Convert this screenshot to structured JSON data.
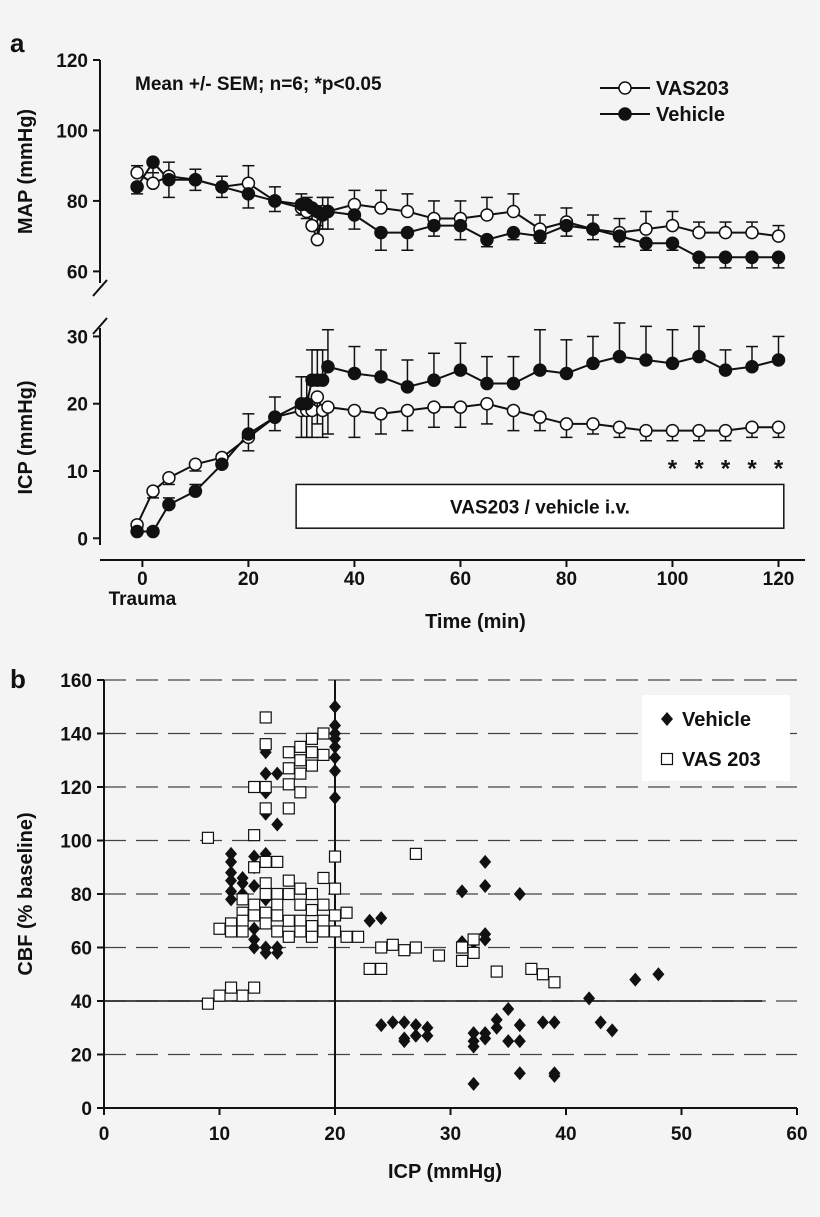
{
  "panels": [
    "a",
    "b"
  ],
  "chart_data": [
    {
      "type": "line",
      "ylabel": "MAP (mmHg)",
      "annotation": "Mean +/- SEM; n=6; *p<0.05",
      "legend": "upper right",
      "x": [
        -1,
        2,
        5,
        10,
        15,
        20,
        25,
        30,
        31,
        32,
        33,
        34,
        35,
        40,
        45,
        50,
        55,
        60,
        65,
        70,
        75,
        80,
        85,
        90,
        95,
        100,
        105,
        110,
        115,
        120
      ],
      "xlim": [
        -8,
        125
      ],
      "ylim": [
        55,
        120
      ],
      "yticks": [
        60,
        80,
        100,
        120
      ],
      "series": [
        {
          "name": "VAS203",
          "color": "#111111",
          "marker": "open",
          "error_side": "up",
          "values": [
            88,
            85,
            87,
            86,
            84,
            85,
            80,
            78,
            77,
            73,
            69,
            77,
            77,
            79,
            78,
            77,
            75,
            75,
            76,
            77,
            72,
            74,
            72,
            71,
            72,
            73,
            71,
            71,
            71,
            70
          ],
          "errors": [
            2,
            3,
            4,
            3,
            3,
            5,
            4,
            4,
            4,
            4,
            3,
            4,
            4,
            4,
            5,
            5,
            5,
            5,
            5,
            5,
            4,
            4,
            4,
            4,
            5,
            4,
            3,
            3,
            3,
            3
          ]
        },
        {
          "name": "Vehicle",
          "color": "#111111",
          "marker": "filled",
          "error_side": "down",
          "values": [
            84,
            91,
            86,
            86,
            84,
            82,
            80,
            79,
            79,
            78,
            77,
            76,
            77,
            76,
            71,
            71,
            73,
            73,
            69,
            71,
            70,
            73,
            72,
            70,
            68,
            68,
            64,
            64,
            64,
            64
          ],
          "errors": [
            2,
            3,
            5,
            3,
            3,
            4,
            3,
            3,
            4,
            4,
            4,
            4,
            5,
            4,
            5,
            5,
            3,
            4,
            2,
            2,
            2,
            3,
            3,
            3,
            2,
            2,
            3,
            3,
            3,
            3
          ]
        }
      ]
    },
    {
      "type": "line",
      "ylabel": "ICP (mmHg)",
      "xlabel": "Time (min)",
      "xmark_label": "Trauma",
      "xmark": 0,
      "x": [
        -1,
        2,
        5,
        10,
        15,
        20,
        25,
        30,
        31,
        32,
        33,
        34,
        35,
        40,
        45,
        50,
        55,
        60,
        65,
        70,
        75,
        80,
        85,
        90,
        95,
        100,
        105,
        110,
        115,
        120
      ],
      "xlim": [
        -8,
        125
      ],
      "xticks": [
        0,
        20,
        40,
        60,
        80,
        100,
        120
      ],
      "ylim": [
        -1,
        32
      ],
      "yticks": [
        0,
        10,
        20,
        30
      ],
      "treatment_box": {
        "label": "VAS203 / vehicle i.v.",
        "x": [
          29,
          121
        ],
        "y": [
          1.5,
          8
        ]
      },
      "significance": {
        "text": "*",
        "x": [
          100,
          105,
          110,
          115,
          120
        ],
        "y": 11
      },
      "series": [
        {
          "color": "#111111",
          "marker": "open",
          "error_side": "down",
          "values": [
            2,
            7,
            9,
            11,
            12,
            15,
            18,
            19,
            19,
            19,
            21,
            19,
            19.5,
            19,
            18.5,
            19,
            19.5,
            19.5,
            20,
            19,
            18,
            17,
            17,
            16.5,
            16,
            16,
            16,
            16,
            16.5,
            16.5
          ],
          "errors": [
            0.5,
            1,
            1,
            1,
            1,
            2,
            2,
            4,
            4,
            4,
            4,
            4,
            4,
            4,
            3,
            3,
            3,
            3,
            3,
            3,
            2,
            2,
            1.5,
            1.5,
            1.5,
            1.5,
            1.5,
            1.5,
            1.5,
            1.5
          ]
        },
        {
          "color": "#111111",
          "marker": "filled",
          "error_side": "up",
          "values": [
            1,
            1,
            5,
            7,
            11,
            15.5,
            18,
            20,
            20,
            23.5,
            23.5,
            23.5,
            25.5,
            24.5,
            24,
            22.5,
            23.5,
            25,
            23,
            23,
            25,
            24.5,
            26,
            27,
            26.5,
            26,
            27,
            25,
            25.5,
            26.5
          ],
          "errors": [
            0.5,
            0.5,
            1,
            1,
            1.5,
            3,
            3,
            4,
            4,
            4.5,
            4.5,
            4.5,
            5.5,
            4,
            4,
            4,
            4,
            4,
            4,
            4,
            6,
            5,
            4,
            5,
            5,
            5,
            4.5,
            3,
            3,
            3.5
          ]
        }
      ]
    },
    {
      "type": "scatter",
      "xlabel": "ICP (mmHg)",
      "ylabel": "CBF (% baseline)",
      "legend": "upper right",
      "grid": "dashed",
      "xlim": [
        0,
        60
      ],
      "ylim": [
        0,
        160
      ],
      "xticks": [
        0,
        10,
        20,
        30,
        40,
        50,
        60
      ],
      "yticks": [
        0,
        20,
        40,
        60,
        80,
        100,
        120,
        140,
        160
      ],
      "hline": {
        "y": 40,
        "x": [
          0,
          57
        ]
      },
      "vline": {
        "x": 20,
        "y": [
          0,
          160
        ]
      },
      "series": [
        {
          "name": "Vehicle",
          "marker": "diamond",
          "color": "#111111",
          "x": [
            11,
            11,
            11,
            11,
            11,
            11,
            12,
            12,
            12,
            13,
            13,
            13,
            13,
            13,
            13,
            14,
            14,
            14,
            14,
            14,
            14,
            14,
            14,
            15,
            15,
            15,
            15,
            20,
            20,
            20,
            20,
            20,
            20,
            20,
            20,
            23,
            24,
            24,
            25,
            26,
            26,
            26,
            27,
            27,
            28,
            28,
            31,
            31,
            32,
            32,
            32,
            32,
            32,
            33,
            33,
            33,
            33,
            33,
            33,
            34,
            34,
            35,
            35,
            36,
            36,
            36,
            36,
            38,
            39,
            39,
            39,
            42,
            43,
            44,
            46,
            48
          ],
          "y": [
            95,
            92,
            88,
            85,
            81,
            78,
            86,
            80,
            84,
            90,
            94,
            83,
            67,
            63,
            60,
            133,
            125,
            118,
            110,
            95,
            78,
            60,
            58,
            125,
            106,
            60,
            58,
            150,
            143,
            140,
            138,
            135,
            131,
            126,
            116,
            70,
            71,
            31,
            32,
            32,
            26,
            25,
            31,
            27,
            30,
            27,
            81,
            62,
            62,
            28,
            25,
            23,
            9,
            92,
            83,
            65,
            63,
            26,
            28,
            33,
            30,
            37,
            25,
            80,
            31,
            25,
            13,
            32,
            32,
            13,
            12,
            41,
            32,
            29,
            48,
            50
          ]
        },
        {
          "name": "VAS 203",
          "marker": "square",
          "color": "#111111",
          "x": [
            9,
            9,
            10,
            10,
            11,
            11,
            11,
            12,
            12,
            12,
            12,
            12,
            13,
            13,
            13,
            13,
            13,
            13,
            14,
            14,
            14,
            14,
            14,
            14,
            14,
            14,
            14,
            15,
            15,
            15,
            15,
            15,
            16,
            16,
            16,
            16,
            16,
            16,
            16,
            16,
            17,
            17,
            17,
            17,
            17,
            17,
            17,
            17,
            18,
            18,
            18,
            18,
            18,
            18,
            18,
            19,
            19,
            19,
            19,
            19,
            19,
            20,
            20,
            20,
            20,
            21,
            21,
            22,
            23,
            24,
            24,
            25,
            26,
            27,
            27,
            29,
            31,
            31,
            32,
            32,
            34,
            37,
            38,
            39
          ],
          "y": [
            101,
            39,
            67,
            42,
            45,
            69,
            66,
            78,
            73,
            70,
            66,
            42,
            120,
            102,
            90,
            76,
            72,
            45,
            146,
            136,
            120,
            112,
            92,
            84,
            80,
            73,
            69,
            92,
            80,
            76,
            72,
            66,
            133,
            127,
            121,
            112,
            85,
            80,
            70,
            64,
            135,
            130,
            125,
            118,
            82,
            76,
            70,
            66,
            138,
            133,
            128,
            80,
            74,
            68,
            64,
            140,
            132,
            86,
            76,
            70,
            66,
            94,
            82,
            72,
            66,
            73,
            64,
            64,
            52,
            52,
            60,
            61,
            59,
            95,
            60,
            57,
            60,
            55,
            63,
            58,
            51,
            52,
            50,
            47
          ]
        }
      ]
    }
  ]
}
